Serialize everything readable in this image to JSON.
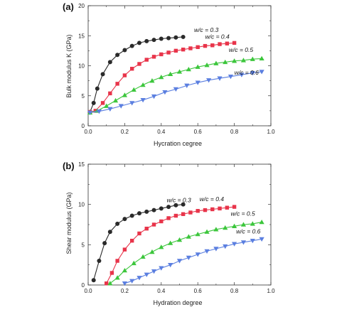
{
  "chart_data": [
    {
      "type": "line",
      "panel": "(a)",
      "xlabel": "Hycration cegree",
      "ylabel": "Bulk modulus K (GPa)",
      "xlim": [
        0,
        1
      ],
      "ylim": [
        0,
        20
      ],
      "xticks": [
        "0.0",
        "0.2",
        "0.4",
        "0.6",
        "0.8",
        "1.0"
      ],
      "yticks": [
        "0",
        "5",
        "10",
        "15",
        "20"
      ],
      "grid": false,
      "series": [
        {
          "name": "w/c = 0.3",
          "color": "#2a2a2a",
          "marker": "circle",
          "x": [
            0.01,
            0.03,
            0.05,
            0.08,
            0.12,
            0.16,
            0.2,
            0.24,
            0.28,
            0.32,
            0.36,
            0.4,
            0.44,
            0.48,
            0.52
          ],
          "y": [
            2.3,
            3.8,
            6.2,
            8.6,
            10.6,
            11.8,
            12.6,
            13.3,
            13.8,
            14.1,
            14.3,
            14.5,
            14.6,
            14.7,
            14.8
          ]
        },
        {
          "name": "w/c = 0.4",
          "color": "#e8344a",
          "marker": "square",
          "x": [
            0.01,
            0.04,
            0.08,
            0.12,
            0.16,
            0.2,
            0.24,
            0.28,
            0.32,
            0.36,
            0.4,
            0.44,
            0.48,
            0.52,
            0.56,
            0.6,
            0.64,
            0.68,
            0.72,
            0.76,
            0.8
          ],
          "y": [
            2.3,
            2.5,
            3.8,
            5.4,
            7.0,
            8.4,
            9.5,
            10.3,
            11.0,
            11.5,
            11.9,
            12.2,
            12.5,
            12.7,
            12.9,
            13.1,
            13.3,
            13.4,
            13.6,
            13.7,
            13.8
          ]
        },
        {
          "name": "w/c = 0.5",
          "color": "#3cc63c",
          "marker": "triangle-up",
          "x": [
            0.01,
            0.05,
            0.1,
            0.15,
            0.2,
            0.25,
            0.3,
            0.35,
            0.4,
            0.45,
            0.5,
            0.55,
            0.6,
            0.65,
            0.7,
            0.75,
            0.8,
            0.85,
            0.9,
            0.95
          ],
          "y": [
            2.2,
            2.5,
            3.3,
            4.2,
            5.1,
            6.0,
            6.8,
            7.5,
            8.1,
            8.6,
            9.0,
            9.4,
            9.8,
            10.1,
            10.4,
            10.6,
            10.8,
            10.9,
            11.1,
            11.2
          ]
        },
        {
          "name": "w/c = 0.6",
          "color": "#5b7fe0",
          "marker": "triangle-down",
          "x": [
            0.01,
            0.06,
            0.12,
            0.18,
            0.24,
            0.3,
            0.36,
            0.42,
            0.48,
            0.54,
            0.6,
            0.66,
            0.72,
            0.78,
            0.84,
            0.9,
            0.95
          ],
          "y": [
            2.2,
            2.4,
            2.8,
            3.3,
            3.8,
            4.3,
            4.9,
            5.6,
            6.1,
            6.7,
            7.2,
            7.6,
            7.9,
            8.2,
            8.5,
            8.8,
            9.0
          ]
        }
      ]
    },
    {
      "type": "line",
      "panel": "(b)",
      "xlabel": "Hydration degree",
      "ylabel": "Shear modulus (GPa)",
      "xlim": [
        0,
        1
      ],
      "ylim": [
        0,
        15
      ],
      "xticks": [
        "0.0",
        "0.2",
        "0.4",
        "0.6",
        "0.8",
        "1.0"
      ],
      "yticks": [
        "0",
        "5",
        "10",
        "15"
      ],
      "grid": false,
      "series": [
        {
          "name": "w/c = 0.3",
          "color": "#2a2a2a",
          "marker": "circle",
          "x": [
            0.03,
            0.06,
            0.09,
            0.12,
            0.16,
            0.2,
            0.24,
            0.28,
            0.32,
            0.36,
            0.4,
            0.44,
            0.48,
            0.52
          ],
          "y": [
            0.6,
            3.0,
            5.2,
            6.6,
            7.6,
            8.2,
            8.6,
            8.9,
            9.1,
            9.3,
            9.5,
            9.7,
            9.9,
            10.0
          ]
        },
        {
          "name": "w/c = 0.4",
          "color": "#e8344a",
          "marker": "square",
          "x": [
            0.1,
            0.13,
            0.16,
            0.2,
            0.24,
            0.28,
            0.32,
            0.36,
            0.4,
            0.44,
            0.48,
            0.52,
            0.56,
            0.6,
            0.64,
            0.68,
            0.72,
            0.76,
            0.8
          ],
          "y": [
            0.2,
            1.5,
            3.0,
            4.4,
            5.5,
            6.4,
            7.0,
            7.5,
            7.9,
            8.3,
            8.6,
            8.8,
            9.0,
            9.2,
            9.3,
            9.4,
            9.5,
            9.6,
            9.7
          ]
        },
        {
          "name": "w/c = 0.5",
          "color": "#3cc63c",
          "marker": "triangle-up",
          "x": [
            0.12,
            0.16,
            0.2,
            0.25,
            0.3,
            0.35,
            0.4,
            0.45,
            0.5,
            0.55,
            0.6,
            0.65,
            0.7,
            0.75,
            0.8,
            0.85,
            0.9,
            0.95
          ],
          "y": [
            0.2,
            0.9,
            1.8,
            2.7,
            3.5,
            4.1,
            4.7,
            5.2,
            5.6,
            6.0,
            6.3,
            6.6,
            6.9,
            7.1,
            7.3,
            7.5,
            7.6,
            7.8
          ]
        },
        {
          "name": "w/c = 0.6",
          "color": "#5b7fe0",
          "marker": "triangle-down",
          "x": [
            0.2,
            0.24,
            0.28,
            0.32,
            0.36,
            0.4,
            0.45,
            0.5,
            0.55,
            0.6,
            0.65,
            0.7,
            0.75,
            0.8,
            0.85,
            0.9,
            0.95
          ],
          "y": [
            0.2,
            0.5,
            0.9,
            1.3,
            1.7,
            2.1,
            2.5,
            3.0,
            3.4,
            3.8,
            4.2,
            4.5,
            4.8,
            5.1,
            5.3,
            5.5,
            5.7
          ]
        }
      ]
    }
  ],
  "annotations": [
    [
      {
        "series": 0,
        "x": 0.58,
        "y": 15.6,
        "text": "w/c = 0.3"
      },
      {
        "series": 1,
        "x": 0.64,
        "y": 14.5,
        "text": "w/c = 0.4"
      },
      {
        "series": 2,
        "x": 0.77,
        "y": 12.3,
        "text": "w/c = 0.5"
      },
      {
        "series": 3,
        "x": 0.8,
        "y": 8.5,
        "text": "w/c = 0.6"
      }
    ],
    [
      {
        "series": 0,
        "x": 0.43,
        "y": 10.3,
        "text": "w/c = 0.3"
      },
      {
        "series": 1,
        "x": 0.61,
        "y": 10.4,
        "text": "w/c = 0.4"
      },
      {
        "series": 2,
        "x": 0.78,
        "y": 8.6,
        "text": "w/c = 0.5"
      },
      {
        "series": 3,
        "x": 0.81,
        "y": 6.4,
        "text": "w/c = 0.6"
      }
    ]
  ]
}
